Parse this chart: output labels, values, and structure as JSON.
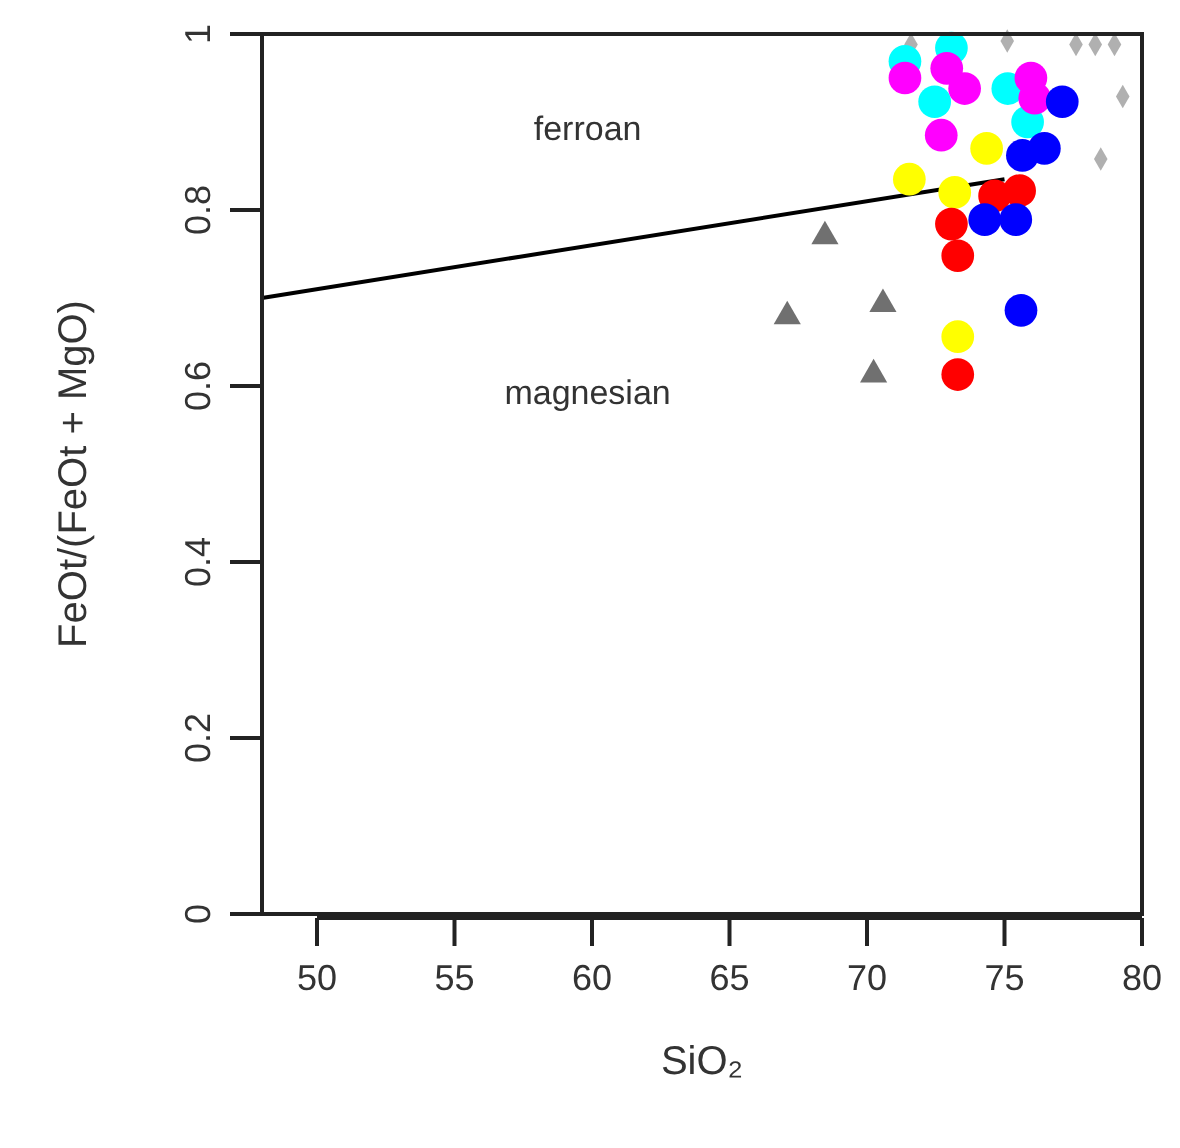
{
  "chart_data": {
    "type": "scatter",
    "xlabel": "SiO₂",
    "ylabel": "FeOt/(FeOt + MgO)",
    "xlim": [
      48,
      80
    ],
    "xticks": [
      50,
      55,
      60,
      65,
      70,
      75,
      80
    ],
    "ylim": [
      0,
      1
    ],
    "yticks": [
      0,
      0.2,
      0.4,
      0.6,
      0.8,
      1
    ],
    "grid": false,
    "annotations": [
      "ferroan",
      "magnesian"
    ],
    "series": [
      {
        "type": "line",
        "line_style": "solid",
        "color": "#000000",
        "x": [
          48,
          75
        ],
        "values": [
          0.7,
          0.835
        ]
      },
      {
        "marker": "triangle",
        "color": "#707070",
        "x": [
          68.47,
          67.1,
          70.58,
          70.24
        ],
        "values": [
          0.77,
          0.679,
          0.693,
          0.613
        ]
      },
      {
        "marker": "diamond",
        "color": "#b0b0b0",
        "x": [
          79.3,
          78.5,
          77.6,
          78.3,
          79,
          75.1,
          71.6
        ],
        "values": [
          0.929,
          0.858,
          0.988,
          0.988,
          0.988,
          0.992,
          0.988
        ]
      },
      {
        "marker": "circle",
        "color": "#00ffff",
        "x": [
          71.38,
          73.07,
          72.46,
          75.12,
          75.84
        ],
        "values": [
          0.969,
          0.984,
          0.923,
          0.938,
          0.9
        ]
      },
      {
        "marker": "circle",
        "color": "#ff00ff",
        "x": [
          71.38,
          72.9,
          73.55,
          72.7,
          75.96,
          76.1
        ],
        "values": [
          0.95,
          0.961,
          0.938,
          0.885,
          0.95,
          0.927
        ]
      },
      {
        "marker": "circle",
        "color": "#ffff00",
        "x": [
          71.54,
          74.35,
          73.19,
          73.3
        ],
        "values": [
          0.835,
          0.87,
          0.82,
          0.656
        ]
      },
      {
        "marker": "circle",
        "color": "#ff0000",
        "x": [
          73.07,
          73.3,
          73.3,
          74.64,
          75.55
        ],
        "values": [
          0.784,
          0.748,
          0.613,
          0.816,
          0.822
        ]
      },
      {
        "marker": "circle",
        "color": "#0000ff",
        "x": [
          74.28,
          75.41,
          75.6,
          75.65,
          76.45,
          77.1
        ],
        "values": [
          0.789,
          0.789,
          0.686,
          0.862,
          0.87,
          0.923
        ]
      }
    ]
  }
}
